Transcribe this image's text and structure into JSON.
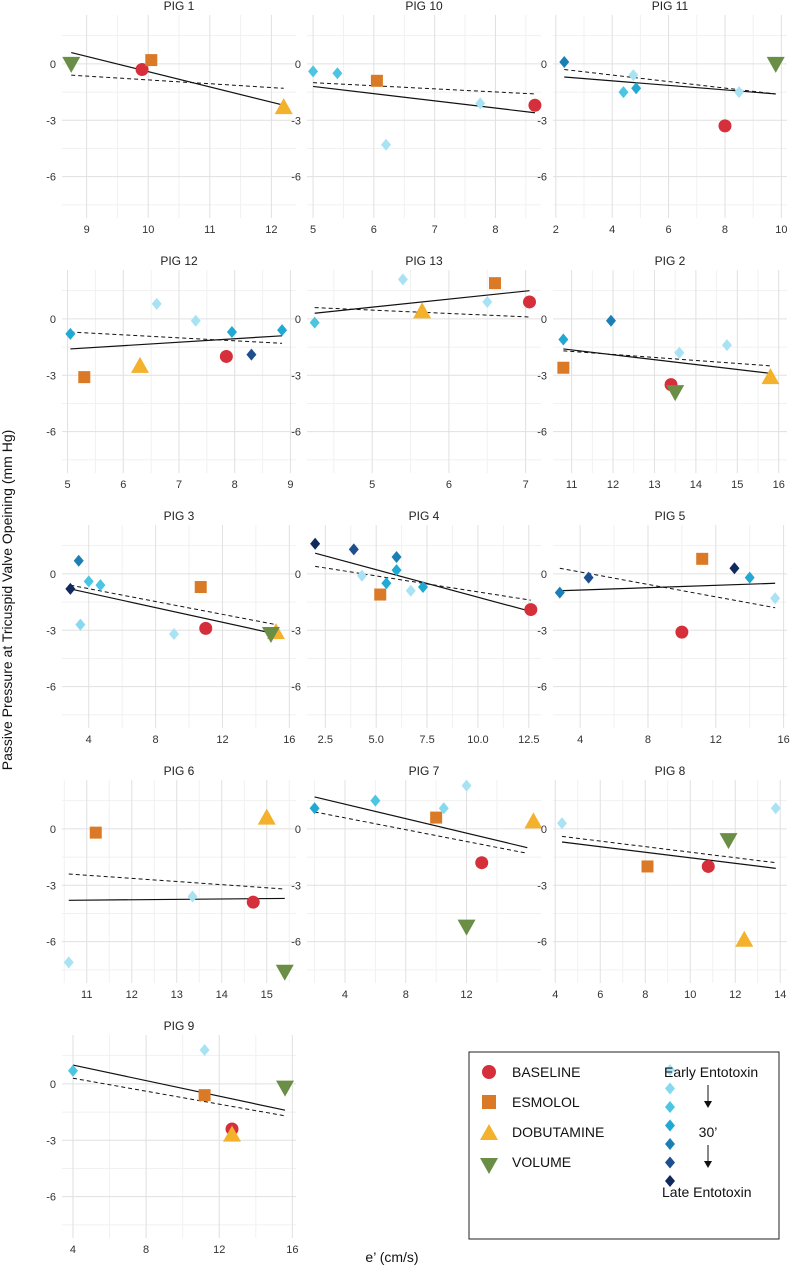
{
  "figure": {
    "x_axis_label": "e’ (cm/s)",
    "y_axis_label": "Passive Pressure at Tricuspid Valve Opeining (mm Hg)"
  },
  "colors": {
    "baseline": "#d62f3c",
    "esmolol": "#db7a26",
    "dobutamine": "#f3b12c",
    "volume": "#6b8e47",
    "entotoxin": [
      "#a9e3f3",
      "#86d9ef",
      "#4cc5e2",
      "#1fa9d3",
      "#1b7fb6",
      "#1d4f8f",
      "#102a5e"
    ]
  },
  "legend": {
    "groups": [
      "BASELINE",
      "ESMOLOL",
      "DOBUTAMINE",
      "VOLUME"
    ],
    "early_label": "Early Entotoxin",
    "time_label": "30’",
    "late_label": "Late Entotoxin"
  },
  "chart_data": [
    {
      "type": "scatter",
      "title": "PIG 1",
      "xlim": [
        8.6,
        12.4
      ],
      "xticks": [
        9,
        10,
        11,
        12
      ],
      "ylim": [
        -8.2,
        2.6
      ],
      "yticks": [
        0,
        -3,
        -6
      ],
      "points": [
        {
          "x": 9.9,
          "y": -0.3,
          "g": "baseline"
        },
        {
          "x": 10.05,
          "y": 0.2,
          "g": "esmolol"
        },
        {
          "x": 12.2,
          "y": -2.3,
          "g": "dobutamine"
        },
        {
          "x": 8.75,
          "y": 0.0,
          "g": "volume"
        }
      ],
      "solid_fit": [
        [
          8.75,
          0.6
        ],
        [
          12.2,
          -2.2
        ]
      ],
      "dashed_fit": [
        [
          8.75,
          -0.6
        ],
        [
          12.2,
          -1.3
        ]
      ]
    },
    {
      "type": "scatter",
      "title": "PIG 10",
      "xlim": [
        4.9,
        8.75
      ],
      "xticks": [
        5,
        6,
        7,
        8
      ],
      "ylim": [
        -8.2,
        2.6
      ],
      "yticks": [
        0,
        -3,
        -6
      ],
      "points": [
        {
          "x": 8.65,
          "y": -2.2,
          "g": "baseline"
        },
        {
          "x": 6.05,
          "y": -0.9,
          "g": "esmolol"
        },
        {
          "x": 6.2,
          "y": -4.3,
          "g": "e0"
        },
        {
          "x": 7.75,
          "y": -2.1,
          "g": "e0"
        },
        {
          "x": 5.0,
          "y": -0.4,
          "g": "e2"
        },
        {
          "x": 5.4,
          "y": -0.5,
          "g": "e2"
        }
      ],
      "solid_fit": [
        [
          5.0,
          -1.2
        ],
        [
          8.65,
          -2.6
        ]
      ],
      "dashed_fit": [
        [
          5.0,
          -1.0
        ],
        [
          8.65,
          -1.6
        ]
      ]
    },
    {
      "type": "scatter",
      "title": "PIG 11",
      "xlim": [
        1.9,
        10.2
      ],
      "xticks": [
        2,
        4,
        6,
        8,
        10
      ],
      "ylim": [
        -8.2,
        2.6
      ],
      "yticks": [
        0,
        -3,
        -6
      ],
      "points": [
        {
          "x": 8.0,
          "y": -3.3,
          "g": "baseline"
        },
        {
          "x": 9.8,
          "y": 0.0,
          "g": "volume"
        },
        {
          "x": 4.75,
          "y": -0.6,
          "g": "e0"
        },
        {
          "x": 8.5,
          "y": -1.5,
          "g": "e0"
        },
        {
          "x": 4.4,
          "y": -1.5,
          "g": "e2"
        },
        {
          "x": 4.85,
          "y": -1.3,
          "g": "e3"
        },
        {
          "x": 2.3,
          "y": 0.1,
          "g": "e4"
        }
      ],
      "solid_fit": [
        [
          2.3,
          -0.7
        ],
        [
          9.8,
          -1.6
        ]
      ],
      "dashed_fit": [
        [
          2.3,
          -0.3
        ],
        [
          9.8,
          -1.6
        ]
      ]
    },
    {
      "type": "scatter",
      "title": "PIG 12",
      "xlim": [
        4.9,
        9.1
      ],
      "xticks": [
        5,
        6,
        7,
        8,
        9
      ],
      "ylim": [
        -8.2,
        2.6
      ],
      "yticks": [
        0,
        -3,
        -6
      ],
      "points": [
        {
          "x": 7.85,
          "y": -2.0,
          "g": "baseline"
        },
        {
          "x": 5.3,
          "y": -3.1,
          "g": "esmolol"
        },
        {
          "x": 6.3,
          "y": -2.5,
          "g": "dobutamine"
        },
        {
          "x": 6.6,
          "y": 0.8,
          "g": "e0"
        },
        {
          "x": 7.3,
          "y": -0.1,
          "g": "e0"
        },
        {
          "x": 5.05,
          "y": -0.8,
          "g": "e3"
        },
        {
          "x": 7.95,
          "y": -0.7,
          "g": "e3"
        },
        {
          "x": 8.85,
          "y": -0.6,
          "g": "e3"
        },
        {
          "x": 8.3,
          "y": -1.9,
          "g": "e5"
        }
      ],
      "solid_fit": [
        [
          5.05,
          -1.6
        ],
        [
          8.85,
          -0.9
        ]
      ],
      "dashed_fit": [
        [
          5.05,
          -0.7
        ],
        [
          8.85,
          -1.3
        ]
      ]
    },
    {
      "type": "scatter",
      "title": "PIG 13",
      "xlim": [
        4.15,
        7.2
      ],
      "xticks": [
        5,
        6,
        7
      ],
      "ylim": [
        -8.2,
        2.6
      ],
      "yticks": [
        0,
        -3,
        -6
      ],
      "points": [
        {
          "x": 7.05,
          "y": 0.9,
          "g": "baseline"
        },
        {
          "x": 6.6,
          "y": 1.9,
          "g": "esmolol"
        },
        {
          "x": 5.65,
          "y": 0.4,
          "g": "dobutamine"
        },
        {
          "x": 5.4,
          "y": 2.1,
          "g": "e0"
        },
        {
          "x": 6.5,
          "y": 0.9,
          "g": "e0"
        },
        {
          "x": 4.25,
          "y": -0.2,
          "g": "e2"
        }
      ],
      "solid_fit": [
        [
          4.25,
          0.3
        ],
        [
          7.05,
          1.5
        ]
      ],
      "dashed_fit": [
        [
          4.25,
          0.6
        ],
        [
          7.05,
          0.1
        ]
      ]
    },
    {
      "type": "scatter",
      "title": "PIG 2",
      "xlim": [
        10.55,
        16.2
      ],
      "xticks": [
        11,
        12,
        13,
        14,
        15,
        16
      ],
      "ylim": [
        -8.2,
        2.6
      ],
      "yticks": [
        0,
        -3,
        -6
      ],
      "points": [
        {
          "x": 13.4,
          "y": -3.5,
          "g": "baseline"
        },
        {
          "x": 10.8,
          "y": -2.6,
          "g": "esmolol"
        },
        {
          "x": 15.8,
          "y": -3.1,
          "g": "dobutamine"
        },
        {
          "x": 13.5,
          "y": -3.9,
          "g": "volume"
        },
        {
          "x": 13.6,
          "y": -1.8,
          "g": "e0"
        },
        {
          "x": 14.75,
          "y": -1.4,
          "g": "e0"
        },
        {
          "x": 10.8,
          "y": -1.1,
          "g": "e3"
        },
        {
          "x": 11.95,
          "y": -0.1,
          "g": "e4"
        }
      ],
      "solid_fit": [
        [
          10.8,
          -1.6
        ],
        [
          15.8,
          -2.9
        ]
      ],
      "dashed_fit": [
        [
          10.8,
          -1.7
        ],
        [
          15.8,
          -2.5
        ]
      ]
    },
    {
      "type": "scatter",
      "title": "PIG 3",
      "xlim": [
        2.4,
        16.4
      ],
      "xticks": [
        4,
        8,
        12,
        16
      ],
      "ylim": [
        -8.2,
        2.6
      ],
      "yticks": [
        0,
        -3,
        -6
      ],
      "points": [
        {
          "x": 11.0,
          "y": -2.9,
          "g": "baseline"
        },
        {
          "x": 10.7,
          "y": -0.7,
          "g": "esmolol"
        },
        {
          "x": 15.2,
          "y": -3.1,
          "g": "dobutamine"
        },
        {
          "x": 14.9,
          "y": -3.2,
          "g": "volume"
        },
        {
          "x": 9.1,
          "y": -3.2,
          "g": "e0"
        },
        {
          "x": 3.5,
          "y": -2.7,
          "g": "e1"
        },
        {
          "x": 4.0,
          "y": -0.4,
          "g": "e2"
        },
        {
          "x": 4.7,
          "y": -0.6,
          "g": "e2"
        },
        {
          "x": 3.4,
          "y": 0.7,
          "g": "e4"
        },
        {
          "x": 2.9,
          "y": -0.8,
          "g": "e6"
        }
      ],
      "solid_fit": [
        [
          2.9,
          -0.8
        ],
        [
          15.2,
          -3.2
        ]
      ],
      "dashed_fit": [
        [
          2.9,
          -0.6
        ],
        [
          15.2,
          -2.7
        ]
      ]
    },
    {
      "type": "scatter",
      "title": "PIG 4",
      "xlim": [
        1.6,
        13.1
      ],
      "xticks": [
        2.5,
        5.0,
        7.5,
        10.0,
        12.5
      ],
      "ylim": [
        -8.2,
        2.6
      ],
      "yticks": [
        0,
        -3,
        -6
      ],
      "points": [
        {
          "x": 12.6,
          "y": -1.9,
          "g": "baseline"
        },
        {
          "x": 5.2,
          "y": -1.1,
          "g": "esmolol"
        },
        {
          "x": 4.3,
          "y": -0.1,
          "g": "e0"
        },
        {
          "x": 6.7,
          "y": -0.9,
          "g": "e0"
        },
        {
          "x": 7.3,
          "y": -0.7,
          "g": "e3"
        },
        {
          "x": 5.5,
          "y": -0.5,
          "g": "e3"
        },
        {
          "x": 6.0,
          "y": 0.2,
          "g": "e3"
        },
        {
          "x": 6.0,
          "y": 0.9,
          "g": "e4"
        },
        {
          "x": 3.9,
          "y": 1.3,
          "g": "e5"
        },
        {
          "x": 2.0,
          "y": 1.6,
          "g": "e6"
        }
      ],
      "solid_fit": [
        [
          2.0,
          1.1
        ],
        [
          12.6,
          -2.0
        ]
      ],
      "dashed_fit": [
        [
          2.0,
          0.4
        ],
        [
          12.6,
          -1.4
        ]
      ]
    },
    {
      "type": "scatter",
      "title": "PIG 5",
      "xlim": [
        2.4,
        16.2
      ],
      "xticks": [
        4,
        8,
        12,
        16
      ],
      "ylim": [
        -8.2,
        2.6
      ],
      "yticks": [
        0,
        -3,
        -6
      ],
      "points": [
        {
          "x": 10.0,
          "y": -3.1,
          "g": "baseline"
        },
        {
          "x": 11.2,
          "y": 0.8,
          "g": "esmolol"
        },
        {
          "x": 15.5,
          "y": -1.3,
          "g": "e0"
        },
        {
          "x": 14.0,
          "y": -0.2,
          "g": "e3"
        },
        {
          "x": 2.8,
          "y": -1.0,
          "g": "e4"
        },
        {
          "x": 4.5,
          "y": -0.2,
          "g": "e5"
        },
        {
          "x": 13.1,
          "y": 0.3,
          "g": "e6"
        }
      ],
      "solid_fit": [
        [
          2.8,
          -0.9
        ],
        [
          15.5,
          -0.5
        ]
      ],
      "dashed_fit": [
        [
          2.8,
          0.3
        ],
        [
          15.5,
          -1.8
        ]
      ]
    },
    {
      "type": "scatter",
      "title": "PIG 6",
      "xlim": [
        10.45,
        15.65
      ],
      "xticks": [
        11,
        12,
        13,
        14,
        15
      ],
      "ylim": [
        -8.2,
        2.6
      ],
      "yticks": [
        0,
        -3,
        -6
      ],
      "points": [
        {
          "x": 14.7,
          "y": -3.9,
          "g": "baseline"
        },
        {
          "x": 11.2,
          "y": -0.2,
          "g": "esmolol"
        },
        {
          "x": 15.0,
          "y": 0.6,
          "g": "dobutamine"
        },
        {
          "x": 15.4,
          "y": -7.6,
          "g": "volume"
        },
        {
          "x": 10.6,
          "y": -7.1,
          "g": "e0"
        },
        {
          "x": 13.35,
          "y": -3.6,
          "g": "e0"
        }
      ],
      "solid_fit": [
        [
          10.6,
          -3.8
        ],
        [
          15.4,
          -3.7
        ]
      ],
      "dashed_fit": [
        [
          10.6,
          -2.4
        ],
        [
          15.4,
          -3.2
        ]
      ]
    },
    {
      "type": "scatter",
      "title": "PIG 7",
      "xlim": [
        1.5,
        16.9
      ],
      "xticks": [
        4,
        8,
        12
      ],
      "ylim": [
        -8.2,
        2.6
      ],
      "yticks": [
        0,
        -3,
        -6
      ],
      "points": [
        {
          "x": 13.0,
          "y": -1.8,
          "g": "baseline"
        },
        {
          "x": 10.0,
          "y": 0.6,
          "g": "esmolol"
        },
        {
          "x": 16.4,
          "y": 0.4,
          "g": "dobutamine"
        },
        {
          "x": 12.0,
          "y": -5.2,
          "g": "volume"
        },
        {
          "x": 12.0,
          "y": 2.3,
          "g": "e0"
        },
        {
          "x": 10.5,
          "y": 1.1,
          "g": "e1"
        },
        {
          "x": 6.0,
          "y": 1.5,
          "g": "e2"
        },
        {
          "x": 2.0,
          "y": 1.1,
          "g": "e3"
        }
      ],
      "solid_fit": [
        [
          2.0,
          1.7
        ],
        [
          16.0,
          -1.0
        ]
      ],
      "dashed_fit": [
        [
          2.0,
          0.9
        ],
        [
          16.0,
          -1.3
        ]
      ]
    },
    {
      "type": "scatter",
      "title": "PIG 8",
      "xlim": [
        3.9,
        14.3
      ],
      "xticks": [
        4,
        6,
        8,
        10,
        12,
        14
      ],
      "ylim": [
        -8.2,
        2.6
      ],
      "yticks": [
        0,
        -3,
        -6
      ],
      "points": [
        {
          "x": 10.8,
          "y": -2.0,
          "g": "baseline"
        },
        {
          "x": 8.1,
          "y": -2.0,
          "g": "esmolol"
        },
        {
          "x": 12.4,
          "y": -5.9,
          "g": "dobutamine"
        },
        {
          "x": 11.7,
          "y": -0.6,
          "g": "volume"
        },
        {
          "x": 4.3,
          "y": 0.3,
          "g": "e0"
        },
        {
          "x": 13.8,
          "y": 1.1,
          "g": "e0"
        }
      ],
      "solid_fit": [
        [
          4.3,
          -0.7
        ],
        [
          13.8,
          -2.1
        ]
      ],
      "dashed_fit": [
        [
          4.3,
          -0.4
        ],
        [
          13.8,
          -1.8
        ]
      ]
    },
    {
      "type": "scatter",
      "title": "PIG 9",
      "xlim": [
        3.4,
        16.2
      ],
      "xticks": [
        4,
        8,
        12,
        16
      ],
      "ylim": [
        -8.2,
        2.6
      ],
      "yticks": [
        0,
        -3,
        -6
      ],
      "points": [
        {
          "x": 12.7,
          "y": -2.4,
          "g": "baseline"
        },
        {
          "x": 11.2,
          "y": -0.6,
          "g": "esmolol"
        },
        {
          "x": 12.7,
          "y": -2.7,
          "g": "dobutamine"
        },
        {
          "x": 15.6,
          "y": -0.2,
          "g": "volume"
        },
        {
          "x": 11.2,
          "y": 1.8,
          "g": "e0"
        },
        {
          "x": 4.0,
          "y": 0.7,
          "g": "e2"
        }
      ],
      "solid_fit": [
        [
          4.0,
          1.0
        ],
        [
          15.6,
          -1.4
        ]
      ],
      "dashed_fit": [
        [
          4.0,
          0.3
        ],
        [
          15.6,
          -1.7
        ]
      ]
    }
  ]
}
